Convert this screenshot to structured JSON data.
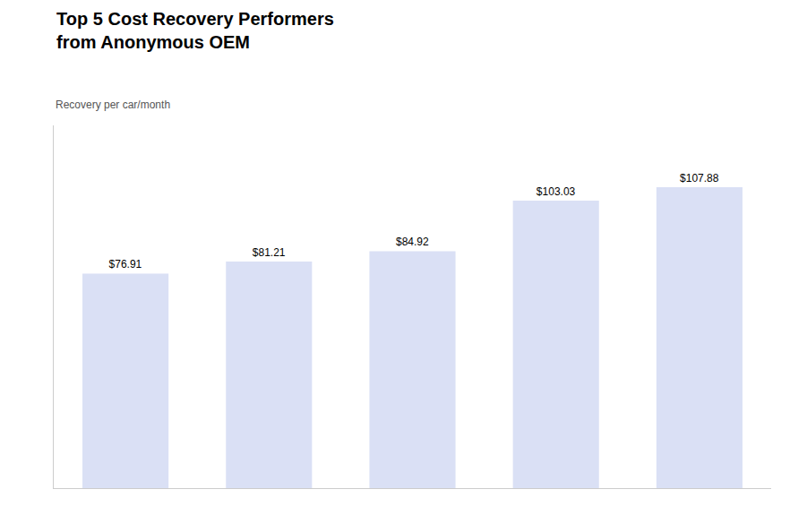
{
  "chart_data": {
    "type": "bar",
    "title": "Top 5 Cost Recovery Performers\nfrom Anonymous OEM",
    "subtitle": "Recovery per car/month",
    "categories": [
      null,
      null,
      null,
      null,
      null
    ],
    "values": [
      76.91,
      81.21,
      84.92,
      103.03,
      107.88
    ],
    "value_labels": [
      "$76.91",
      "$81.21",
      "$84.92",
      "$103.03",
      "$107.88"
    ],
    "color": "#dae0f5",
    "ylim": [
      0,
      130
    ],
    "grid": false,
    "data_labels": true,
    "tick_labels": false
  }
}
